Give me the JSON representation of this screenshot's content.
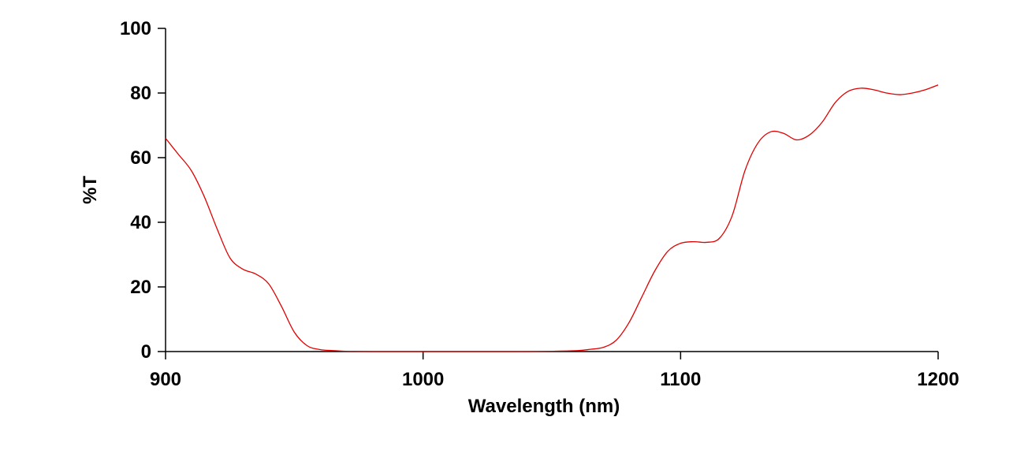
{
  "chart_data": {
    "type": "line",
    "title": "",
    "xlabel": "Wavelength (nm)",
    "ylabel": "%T",
    "xlim": [
      900,
      1200
    ],
    "ylim": [
      0,
      100
    ],
    "xticks": [
      900,
      1000,
      1100,
      1200
    ],
    "yticks": [
      0,
      20,
      40,
      60,
      80,
      100
    ],
    "xtick_labels": [
      "900",
      "1000",
      "1100",
      "1200"
    ],
    "ytick_labels": [
      "0",
      "20",
      "40",
      "60",
      "80",
      "100"
    ],
    "grid": false,
    "legend": "none",
    "series": [
      {
        "color": "#e00000",
        "x": [
          900,
          905,
          910,
          915,
          920,
          925,
          930,
          935,
          940,
          945,
          950,
          955,
          960,
          965,
          970,
          975,
          980,
          985,
          990,
          995,
          1000,
          1010,
          1020,
          1030,
          1040,
          1050,
          1060,
          1065,
          1070,
          1075,
          1080,
          1085,
          1090,
          1095,
          1100,
          1105,
          1110,
          1115,
          1120,
          1125,
          1130,
          1135,
          1140,
          1145,
          1150,
          1155,
          1160,
          1165,
          1170,
          1175,
          1180,
          1185,
          1190,
          1195,
          1200
        ],
        "y": [
          66,
          61,
          56,
          48,
          38,
          29,
          25.5,
          24,
          21,
          14,
          6,
          1.8,
          0.6,
          0.3,
          0.1,
          0.05,
          0,
          0,
          0,
          0,
          0,
          0,
          0,
          0,
          0,
          0.1,
          0.3,
          0.7,
          1.3,
          3.5,
          9,
          17,
          25,
          31,
          33.5,
          34,
          33.8,
          35,
          42,
          56,
          64.5,
          68,
          67.5,
          65.5,
          67,
          71,
          77,
          80.5,
          81.5,
          81,
          80,
          79.5,
          80,
          81,
          82.5
        ]
      }
    ]
  }
}
